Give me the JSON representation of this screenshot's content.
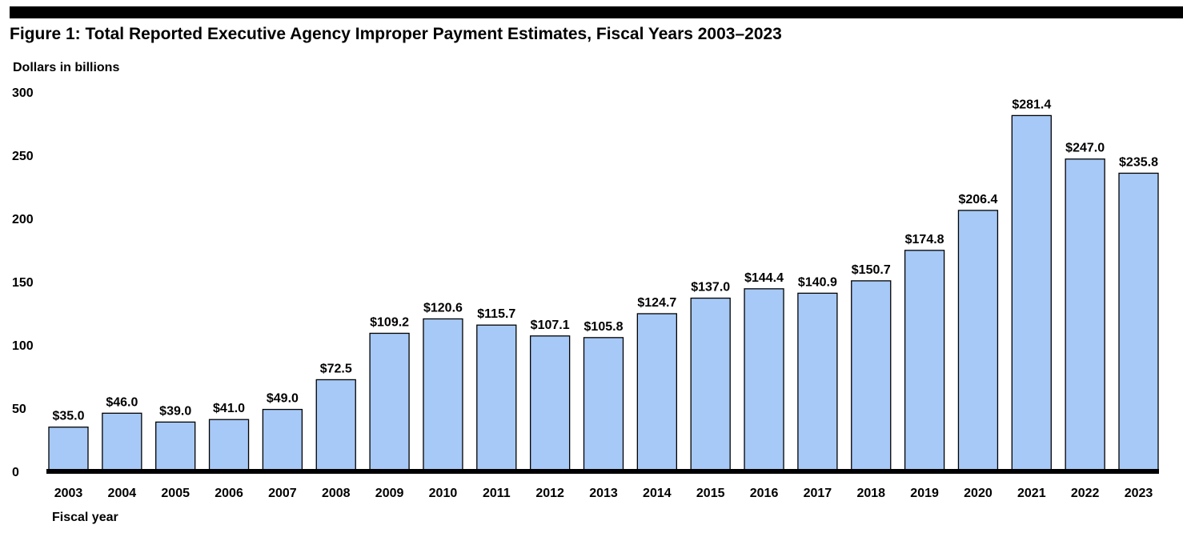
{
  "chart_data": {
    "type": "bar",
    "title": "Figure 1: Total Reported Executive Agency Improper Payment Estimates, Fiscal Years 2003–2023",
    "ylabel": "Dollars in billions",
    "xlabel": "Fiscal year",
    "ylim": [
      0,
      300
    ],
    "yticks": [
      0,
      50,
      100,
      150,
      200,
      250,
      300
    ],
    "grid": false,
    "categories": [
      "2003",
      "2004",
      "2005",
      "2006",
      "2007",
      "2008",
      "2009",
      "2010",
      "2011",
      "2012",
      "2013",
      "2014",
      "2015",
      "2016",
      "2017",
      "2018",
      "2019",
      "2020",
      "2021",
      "2022",
      "2023"
    ],
    "values": [
      35.0,
      46.0,
      39.0,
      41.0,
      49.0,
      72.5,
      109.2,
      120.6,
      115.7,
      107.1,
      105.8,
      124.7,
      137.0,
      144.4,
      140.9,
      150.7,
      174.8,
      206.4,
      281.4,
      247.0,
      235.8
    ],
    "data_labels": [
      "$35.0",
      "$46.0",
      "$39.0",
      "$41.0",
      "$49.0",
      "$72.5",
      "$109.2",
      "$120.6",
      "$115.7",
      "$107.1",
      "$105.8",
      "$124.7",
      "$137.0",
      "$144.4",
      "$140.9",
      "$150.7",
      "$174.8",
      "$206.4",
      "$281.4",
      "$247.0",
      "$235.8"
    ],
    "colors": {
      "bar": "#a7c9f7",
      "bar_outline": "#000000",
      "axis": "#000000"
    }
  }
}
